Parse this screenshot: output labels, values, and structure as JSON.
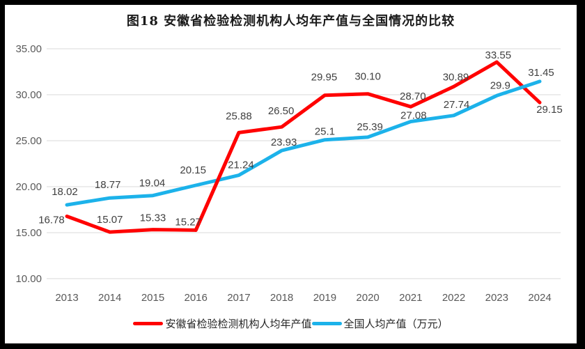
{
  "frame": {
    "border_color": "#000000",
    "background": "#ffffff"
  },
  "title": "图18 安徽省检验检测机构人均年产值与全国情况的比较",
  "chart_data": {
    "type": "line",
    "title": "图18 安徽省检验检测机构人均年产值与全国情况的比较",
    "xlabel": "",
    "ylabel": "",
    "ylim": [
      10,
      35
    ],
    "grid": "horizontal",
    "grid_color": "#d9d9d9",
    "legend_position": "bottom",
    "categories": [
      "2013",
      "2014",
      "2015",
      "2016",
      "2017",
      "2018",
      "2019",
      "2020",
      "2021",
      "2022",
      "2023",
      "2024"
    ],
    "yticks": [
      {
        "value": 10,
        "label": "10.00"
      },
      {
        "value": 15,
        "label": "15.00"
      },
      {
        "value": 20,
        "label": "20.00"
      },
      {
        "value": 25,
        "label": "25.00"
      },
      {
        "value": 30,
        "label": "30.00"
      },
      {
        "value": 35,
        "label": "35.00"
      }
    ],
    "series": [
      {
        "name": "安徽省检验检测机构人均年产值",
        "color": "#ff0000",
        "values": [
          16.78,
          15.07,
          15.33,
          15.27,
          25.88,
          26.5,
          29.95,
          30.1,
          28.7,
          30.89,
          33.55,
          29.15
        ],
        "labels": [
          "16.78",
          "15.07",
          "15.33",
          "15.27",
          "25.88",
          "26.50",
          "29.95",
          "30.10",
          "28.70",
          "30.89",
          "33.55",
          "29.15"
        ],
        "label_offsets": [
          [
            -22,
            10
          ],
          [
            0,
            -13
          ],
          [
            0,
            -12
          ],
          [
            -11,
            -7
          ],
          [
            0,
            -19
          ],
          [
            -1,
            -18
          ],
          [
            -1,
            -21
          ],
          [
            0,
            -20
          ],
          [
            3,
            -10
          ],
          [
            3,
            -9
          ],
          [
            2,
            -5
          ],
          [
            14,
            15
          ]
        ]
      },
      {
        "name": "全国人均产值（万元）",
        "color": "#1cb2ea",
        "values": [
          18.02,
          18.77,
          19.04,
          20.15,
          21.24,
          23.93,
          25.1,
          25.39,
          27.08,
          27.74,
          29.9,
          31.45
        ],
        "labels": [
          "18.02",
          "18.77",
          "19.04",
          "20.15",
          "21.24",
          "23.93",
          "25.1",
          "25.39",
          "27.08",
          "27.74",
          "29.9",
          "31.45"
        ],
        "label_offsets": [
          [
            -3,
            -14
          ],
          [
            -3,
            -14
          ],
          [
            -1,
            -13
          ],
          [
            -4,
            -17
          ],
          [
            3,
            -10
          ],
          [
            3,
            -7
          ],
          [
            0,
            -7
          ],
          [
            3,
            -10
          ],
          [
            4,
            -4
          ],
          [
            4,
            -11
          ],
          [
            5,
            -10
          ],
          [
            2,
            -8
          ]
        ]
      }
    ],
    "overlay_segments": [
      {
        "series": 0,
        "from": 3,
        "to": 4
      }
    ]
  },
  "legend": {
    "items": [
      {
        "label": "安徽省检验检测机构人均年产值"
      },
      {
        "label": "全国人均产值（万元）"
      }
    ]
  }
}
